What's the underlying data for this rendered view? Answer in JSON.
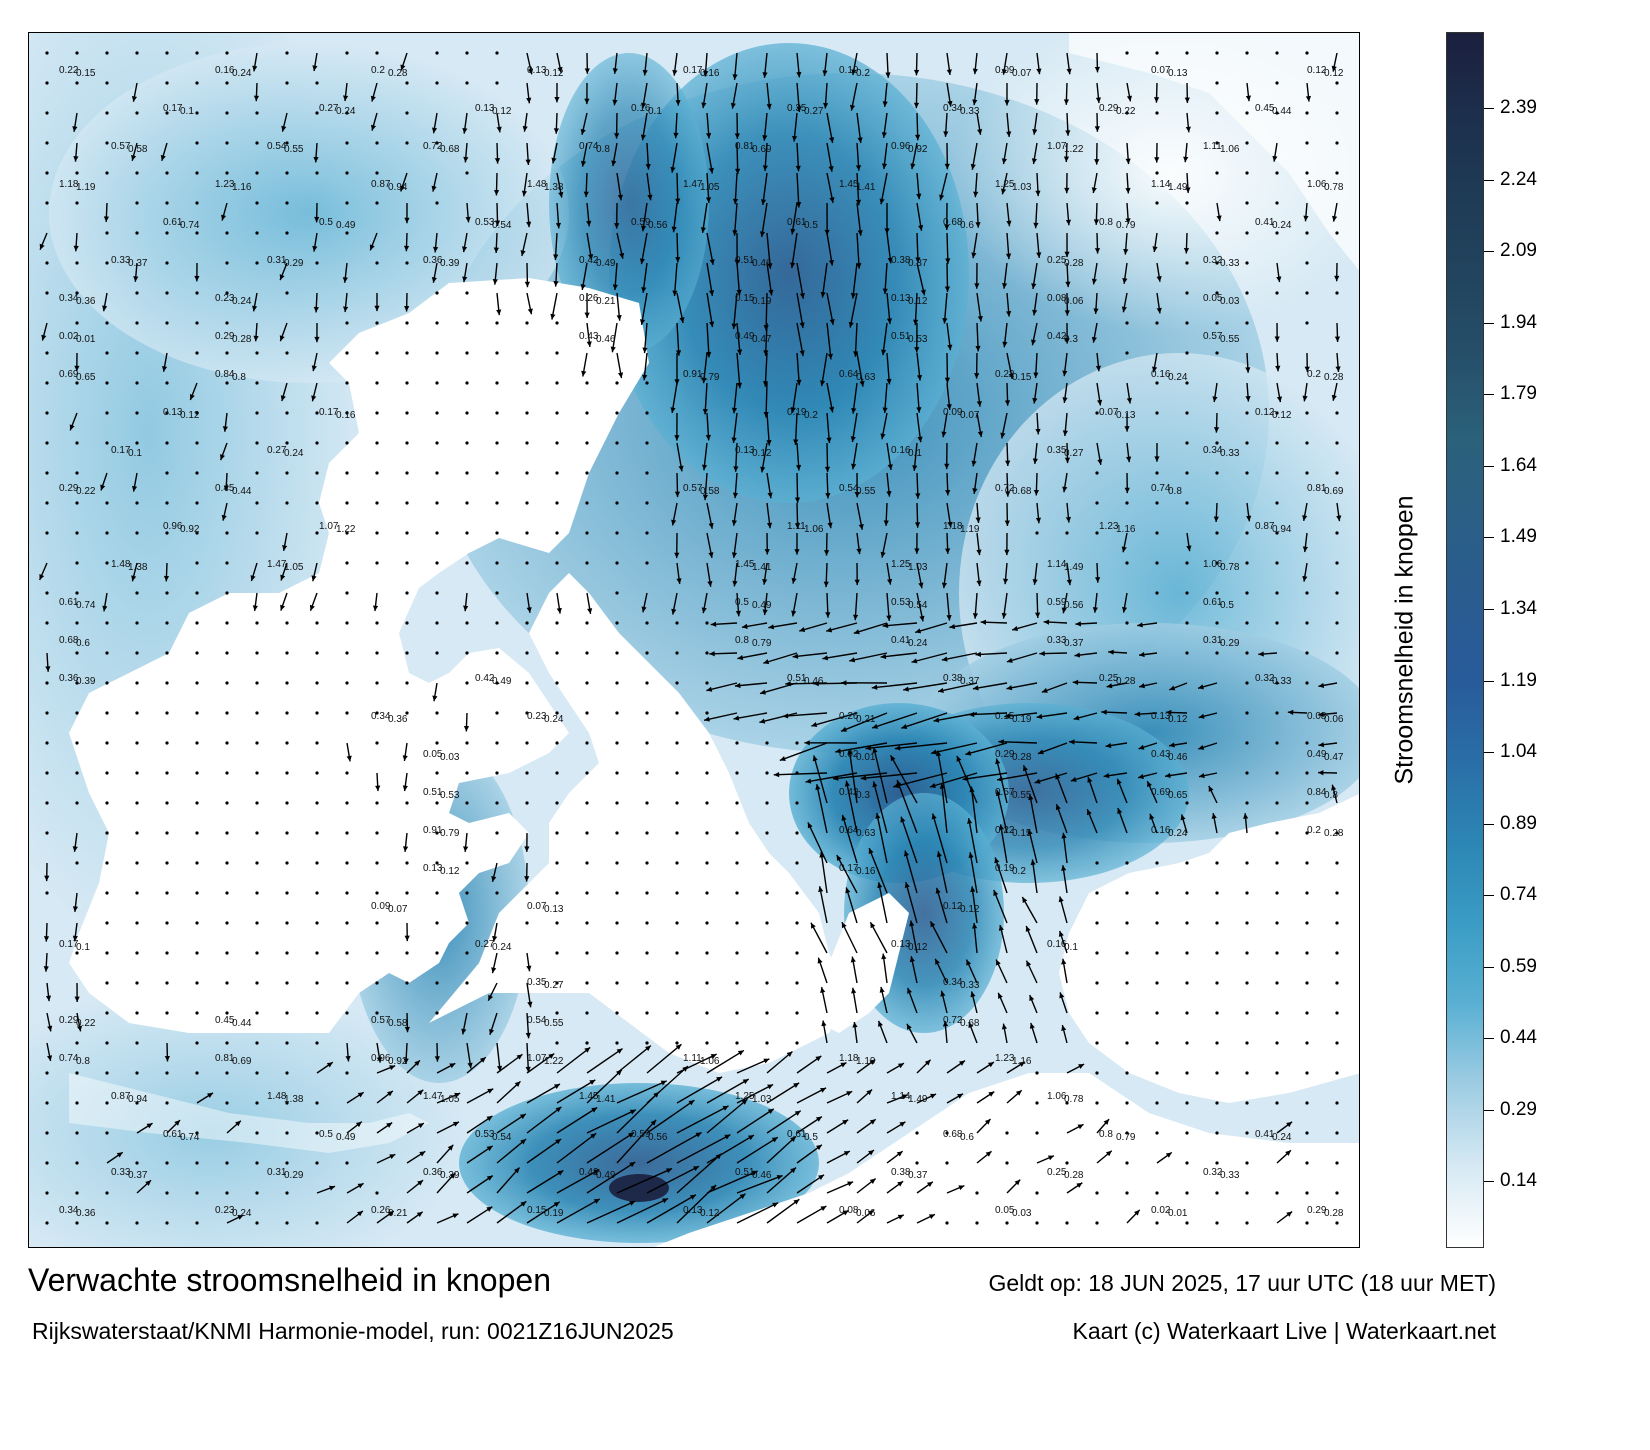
{
  "colorbar": {
    "title": "Stroomsnelheid in knopen",
    "ticks": [
      "2.39",
      "2.24",
      "2.09",
      "1.94",
      "1.79",
      "1.64",
      "1.49",
      "1.34",
      "1.19",
      "1.04",
      "0.89",
      "0.74",
      "0.59",
      "0.44",
      "0.29",
      "0.14"
    ],
    "tick_values": [
      2.39,
      2.24,
      2.09,
      1.94,
      1.79,
      1.64,
      1.49,
      1.34,
      1.19,
      1.04,
      0.89,
      0.74,
      0.59,
      0.44,
      0.29,
      0.14
    ],
    "range": [
      0.0,
      2.55
    ],
    "colors": [
      "#ffffff",
      "#d6e9f4",
      "#9fcde3",
      "#5ab0d3",
      "#3a9cc4",
      "#2c86b4",
      "#2a6ea7",
      "#285b9a",
      "#2a5c90",
      "#2b5f86",
      "#2b617a",
      "#264f6a",
      "#22445e",
      "#1f3b56",
      "#1c2f4c",
      "#1b1f3e"
    ]
  },
  "captions": {
    "title": "Verwachte stroomsnelheid in knopen",
    "model": "Rijkswaterstaat/KNMI Harmonie-model, run: 0021Z16JUN2025",
    "valid": "Geldt op: 18 JUN 2025, 17 uur UTC (18 uur MET)",
    "credit": "Kaart (c) Waterkaart Live | Waterkaart.net"
  },
  "map_labels": [
    {
      "x": "0.22",
      "y": "0.15"
    },
    {
      "x": "0.16",
      "y": "0.24"
    },
    {
      "x": "0.2",
      "y": "0.28"
    },
    {
      "x": "0.13",
      "y": "0.12"
    },
    {
      "x": "0.17",
      "y": "0.16"
    },
    {
      "x": "0.19",
      "y": "0.2"
    },
    {
      "x": "0.09",
      "y": "0.07"
    },
    {
      "x": "0.07",
      "y": "0.13"
    },
    {
      "x": "0.12",
      "y": "0.12"
    },
    {
      "x": "0.17",
      "y": "0.1"
    },
    {
      "x": "0.27",
      "y": "0.24"
    },
    {
      "x": "0.13",
      "y": "0.12"
    },
    {
      "x": "0.16",
      "y": "0.1"
    },
    {
      "x": "0.35",
      "y": "0.27"
    },
    {
      "x": "0.34",
      "y": "0.33"
    },
    {
      "x": "0.29",
      "y": "0.22"
    },
    {
      "x": "0.45",
      "y": "0.44"
    },
    {
      "x": "0.57",
      "y": "0.58"
    },
    {
      "x": "0.54",
      "y": "0.55"
    },
    {
      "x": "0.72",
      "y": "0.68"
    },
    {
      "x": "0.74",
      "y": "0.8"
    },
    {
      "x": "0.81",
      "y": "0.69"
    },
    {
      "x": "0.96",
      "y": "0.92"
    },
    {
      "x": "1.07",
      "y": "1.22"
    },
    {
      "x": "1.11",
      "y": "1.06"
    },
    {
      "x": "1.18",
      "y": "1.19"
    },
    {
      "x": "1.23",
      "y": "1.16"
    },
    {
      "x": "0.87",
      "y": "0.94"
    },
    {
      "x": "1.48",
      "y": "1.38"
    },
    {
      "x": "1.47",
      "y": "1.05"
    },
    {
      "x": "1.45",
      "y": "1.41"
    },
    {
      "x": "1.25",
      "y": "1.03"
    },
    {
      "x": "1.14",
      "y": "1.49"
    },
    {
      "x": "1.06",
      "y": "0.78"
    },
    {
      "x": "0.61",
      "y": "0.74"
    },
    {
      "x": "0.5",
      "y": "0.49"
    },
    {
      "x": "0.53",
      "y": "0.54"
    },
    {
      "x": "0.59",
      "y": "0.56"
    },
    {
      "x": "0.61",
      "y": "0.5"
    },
    {
      "x": "0.68",
      "y": "0.6"
    },
    {
      "x": "0.8",
      "y": "0.79"
    },
    {
      "x": "0.41",
      "y": "0.24"
    },
    {
      "x": "0.33",
      "y": "0.37"
    },
    {
      "x": "0.31",
      "y": "0.29"
    },
    {
      "x": "0.36",
      "y": "0.39"
    },
    {
      "x": "0.42",
      "y": "0.49"
    },
    {
      "x": "0.51",
      "y": "0.46"
    },
    {
      "x": "0.38",
      "y": "0.37"
    },
    {
      "x": "0.25",
      "y": "0.28"
    },
    {
      "x": "0.32",
      "y": "0.33"
    },
    {
      "x": "0.34",
      "y": "0.36"
    },
    {
      "x": "0.23",
      "y": "0.24"
    },
    {
      "x": "0.26",
      "y": "0.21"
    },
    {
      "x": "0.15",
      "y": "0.19"
    },
    {
      "x": "0.13",
      "y": "0.12"
    },
    {
      "x": "0.08",
      "y": "0.06"
    },
    {
      "x": "0.05",
      "y": "0.03"
    },
    {
      "x": "0.02",
      "y": "0.01"
    },
    {
      "x": "0.29",
      "y": "0.28"
    },
    {
      "x": "0.43",
      "y": "0.46"
    },
    {
      "x": "0.49",
      "y": "0.47"
    },
    {
      "x": "0.51",
      "y": "0.53"
    },
    {
      "x": "0.42",
      "y": "0.3"
    },
    {
      "x": "0.57",
      "y": "0.55"
    },
    {
      "x": "0.69",
      "y": "0.65"
    },
    {
      "x": "0.84",
      "y": "0.8"
    },
    {
      "x": "0.91",
      "y": "0.79"
    },
    {
      "x": "0.64",
      "y": "0.63"
    }
  ]
}
